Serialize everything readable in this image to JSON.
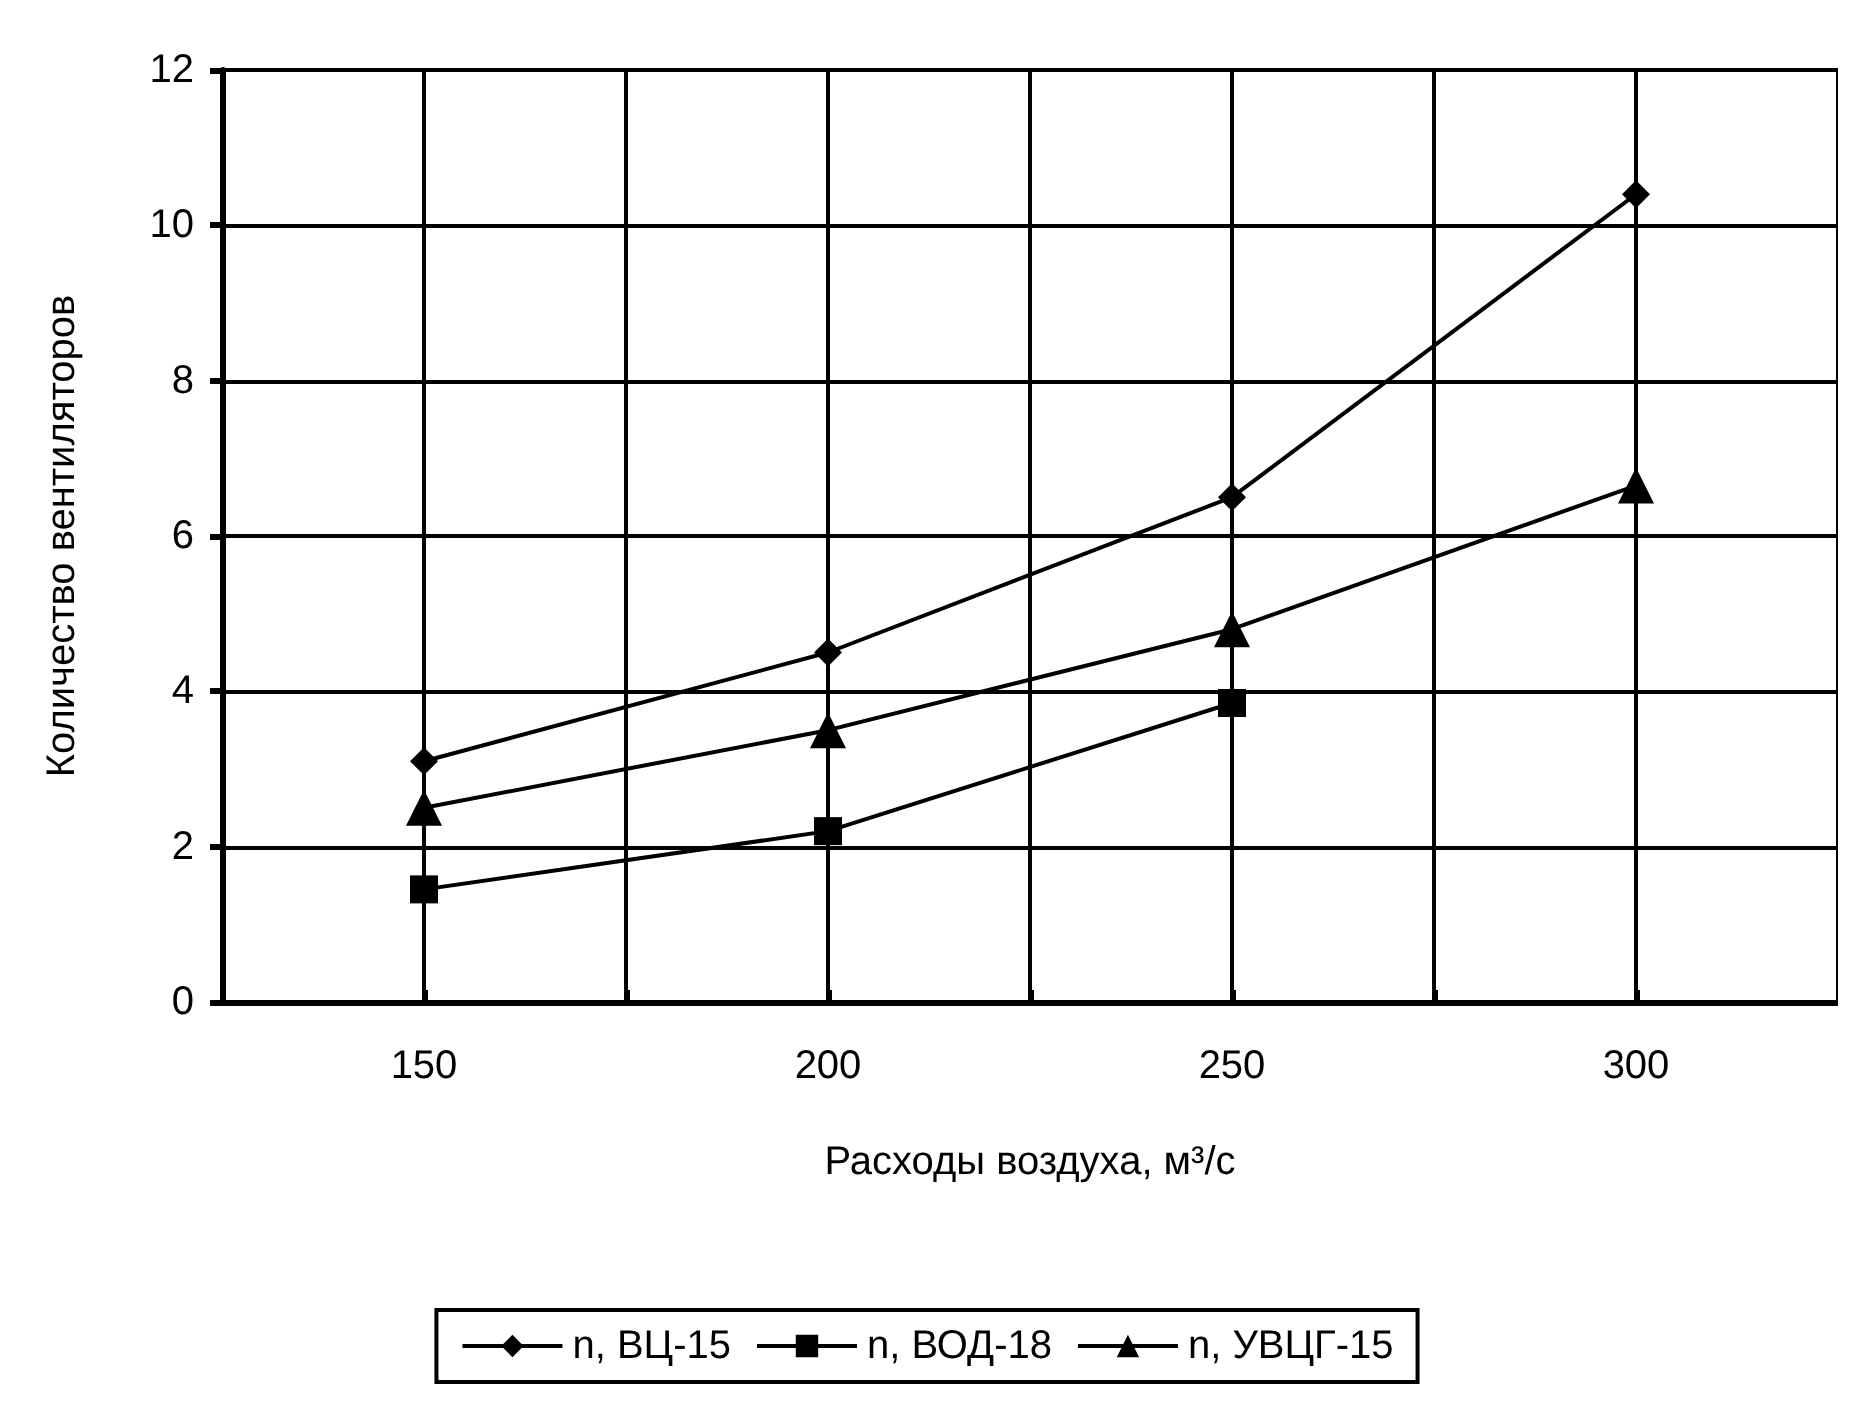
{
  "chart_data": {
    "type": "line",
    "xlabel": "Расходы воздуха, м³/с",
    "ylabel": "Количество вентиляторов",
    "x": [
      150,
      200,
      250,
      300
    ],
    "series": [
      {
        "name": "n, ВЦ-15",
        "color": "#000000",
        "marker": "diamond",
        "values": [
          3.1,
          4.5,
          6.5,
          10.4
        ]
      },
      {
        "name": "n, ВОД-18",
        "color": "#000000",
        "marker": "square",
        "values": [
          1.45,
          2.2,
          3.85,
          null
        ]
      },
      {
        "name": "n, УВЦГ-15",
        "color": "#000000",
        "marker": "triangle",
        "values": [
          2.5,
          3.5,
          4.8,
          6.65
        ]
      }
    ],
    "xlim": [
      125,
      325
    ],
    "xticks": [
      {
        "value": 125,
        "label": null
      },
      150,
      {
        "value": 175,
        "label": null
      },
      200,
      {
        "value": 225,
        "label": null
      },
      250,
      {
        "value": 275,
        "label": null
      },
      300,
      {
        "value": 325,
        "label": null
      }
    ],
    "ylim": [
      0,
      12
    ],
    "yticks": [
      0,
      2,
      4,
      6,
      8,
      10,
      12
    ],
    "grid": true,
    "legend": "bottom",
    "line_style": "solid"
  }
}
